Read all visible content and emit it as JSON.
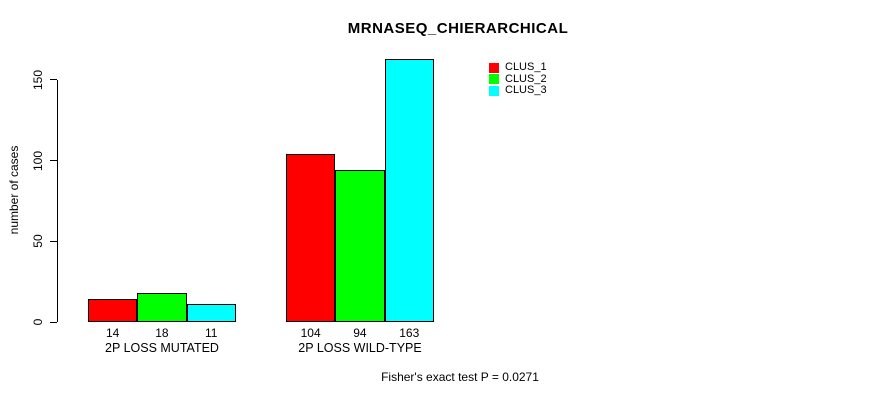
{
  "title": "MRNASEQ_CHIERARCHICAL",
  "y_axis_label": "number of cases",
  "footer_annotation": "Fisher's exact test P = 0.0271",
  "legend": {
    "items": [
      {
        "label": "CLUS_1",
        "color": "#FF0000"
      },
      {
        "label": "CLUS_2",
        "color": "#00FF00"
      },
      {
        "label": "CLUS_3",
        "color": "#00FFFF"
      }
    ]
  },
  "chart_data": {
    "type": "bar",
    "title": "MRNASEQ_CHIERARCHICAL",
    "xlabel": "",
    "ylabel": "number of cases",
    "categories": [
      "2P LOSS MUTATED",
      "2P LOSS WILD-TYPE"
    ],
    "series": [
      {
        "name": "CLUS_1",
        "color": "#FF0000",
        "values": [
          14,
          104
        ]
      },
      {
        "name": "CLUS_2",
        "color": "#00FF00",
        "values": [
          18,
          94
        ]
      },
      {
        "name": "CLUS_3",
        "color": "#00FFFF",
        "values": [
          11,
          163
        ]
      }
    ],
    "yticks": [
      0,
      50,
      100,
      150
    ],
    "ylim": [
      0,
      163
    ],
    "grid": false,
    "legend_position": "top-right",
    "bar_borders": "black",
    "annotation": "Fisher's exact test P = 0.0271"
  }
}
